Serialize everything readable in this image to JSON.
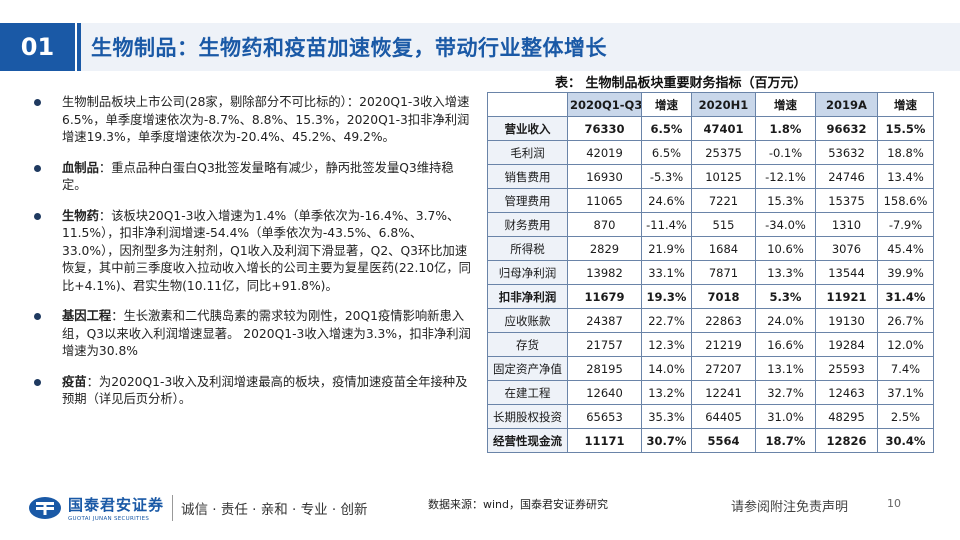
{
  "header": {
    "section_number": "01",
    "title": "生物制品：生物药和疫苗加速恢复，带动行业整体增长"
  },
  "bullets": [
    {
      "lead": "",
      "text": "生物制品板块上市公司(28家，剔除部分不可比标的）：2020Q1-3收入增速6.5%，单季度增速依次为-8.7%、8.8%、15.3%，2020Q1-3扣非净利润增速19.3%，单季度增速依次为-20.4%、45.2%、49.2%。"
    },
    {
      "lead": "血制品",
      "text": "：重点品种白蛋白Q3批签发量略有减少，静丙批签发量Q3维持稳定。"
    },
    {
      "lead": "生物药",
      "text": "：该板块20Q1-3收入增速为1.4%（单季依次为-16.4%、3.7%、11.5%），扣非净利润增速-54.4%（单季依次为-43.5%、6.8%、33.0%），因剂型多为注射剂，Q1收入及利润下滑显著，Q2、Q3环比加速恢复，其中前三季度收入拉动收入增长的公司主要为复星医药(22.10亿，同比+4.1%)、君实生物(10.11亿，同比+91.8%)。"
    },
    {
      "lead": "基因工程",
      "text": "：生长激素和二代胰岛素的需求较为刚性，20Q1疫情影响新患入组，Q3以来收入利润增速显著。 2020Q1-3收入增速为3.3%，扣非净利润增速为30.8%"
    },
    {
      "lead": "疫苗",
      "text": "：为2020Q1-3收入及利润增速最高的板块，疫情加速疫苗全年接种及预期（详见后页分析）。"
    }
  ],
  "table": {
    "caption": "表： 生物制品板块重要财务指标（百万元）",
    "headers": [
      "",
      "2020Q1-Q3",
      "增速",
      "2020H1",
      "增速",
      "2019A",
      "增速"
    ],
    "rows": [
      {
        "bold": true,
        "cells": [
          "营业收入",
          "76330",
          "6.5%",
          "47401",
          "1.8%",
          "96632",
          "15.5%"
        ]
      },
      {
        "bold": false,
        "cells": [
          "毛利润",
          "42019",
          "6.5%",
          "25375",
          "-0.1%",
          "53632",
          "18.8%"
        ]
      },
      {
        "bold": false,
        "cells": [
          "销售费用",
          "16930",
          "-5.3%",
          "10125",
          "-12.1%",
          "24746",
          "13.4%"
        ]
      },
      {
        "bold": false,
        "cells": [
          "管理费用",
          "11065",
          "24.6%",
          "7221",
          "15.3%",
          "15375",
          "158.6%"
        ]
      },
      {
        "bold": false,
        "cells": [
          "财务费用",
          "870",
          "-11.4%",
          "515",
          "-34.0%",
          "1310",
          "-7.9%"
        ]
      },
      {
        "bold": false,
        "cells": [
          "所得税",
          "2829",
          "21.9%",
          "1684",
          "10.6%",
          "3076",
          "45.4%"
        ]
      },
      {
        "bold": false,
        "cells": [
          "归母净利润",
          "13982",
          "33.1%",
          "7871",
          "13.3%",
          "13544",
          "39.9%"
        ]
      },
      {
        "bold": true,
        "cells": [
          "扣非净利润",
          "11679",
          "19.3%",
          "7018",
          "5.3%",
          "11921",
          "31.4%"
        ]
      },
      {
        "bold": false,
        "cells": [
          "应收账款",
          "24387",
          "22.7%",
          "22863",
          "24.0%",
          "19130",
          "26.7%"
        ]
      },
      {
        "bold": false,
        "cells": [
          "存货",
          "21757",
          "12.3%",
          "21219",
          "16.6%",
          "19284",
          "12.0%"
        ]
      },
      {
        "bold": false,
        "cells": [
          "固定资产净值",
          "28195",
          "14.0%",
          "27207",
          "13.1%",
          "25593",
          "7.4%"
        ]
      },
      {
        "bold": false,
        "cells": [
          "在建工程",
          "12640",
          "13.2%",
          "12241",
          "32.7%",
          "12463",
          "37.1%"
        ]
      },
      {
        "bold": false,
        "cells": [
          "长期股权投资",
          "65653",
          "35.3%",
          "64405",
          "31.0%",
          "48295",
          "2.5%"
        ]
      },
      {
        "bold": true,
        "cells": [
          "经营性现金流",
          "11171",
          "30.7%",
          "5564",
          "18.7%",
          "12826",
          "30.4%"
        ]
      }
    ]
  },
  "footer": {
    "logo_cn": "国泰君安证券",
    "logo_en": "GUOTAI JUNAN SECURITIES",
    "slogan": "诚信 · 责任 · 亲和 · 专业 · 创新",
    "source": "数据来源：wind，国泰君安证券研究",
    "disclaimer": "请参阅附注免责声明",
    "page_number": "10"
  },
  "colors": {
    "brand_blue": "#1a59a6",
    "header_fill": "#c9d7ea",
    "label_fill": "#eef2f8",
    "border": "#6a84a8"
  }
}
